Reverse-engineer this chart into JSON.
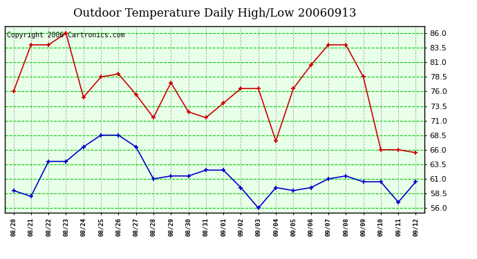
{
  "title": "Outdoor Temperature Daily High/Low 20060913",
  "copyright": "Copyright 2006 Cartronics.com",
  "labels": [
    "08/20",
    "08/21",
    "08/22",
    "08/23",
    "08/24",
    "08/25",
    "08/26",
    "08/27",
    "08/28",
    "08/29",
    "08/30",
    "08/31",
    "09/01",
    "09/02",
    "09/03",
    "09/04",
    "09/05",
    "09/06",
    "09/07",
    "09/08",
    "09/09",
    "09/10",
    "09/11",
    "09/12"
  ],
  "high": [
    76.0,
    84.0,
    84.0,
    86.0,
    75.0,
    78.5,
    79.0,
    75.5,
    71.5,
    77.5,
    72.5,
    71.5,
    74.0,
    76.5,
    76.5,
    67.5,
    76.5,
    80.5,
    84.0,
    84.0,
    78.5,
    66.0,
    66.0,
    65.5
  ],
  "low": [
    59.0,
    58.0,
    64.0,
    64.0,
    66.5,
    68.5,
    68.5,
    66.5,
    61.0,
    61.5,
    61.5,
    62.5,
    62.5,
    59.5,
    56.0,
    59.5,
    59.0,
    59.5,
    61.0,
    61.5,
    60.5,
    60.5,
    57.0,
    60.5
  ],
  "high_color": "#cc0000",
  "low_color": "#0000cc",
  "bg_color": "#ffffff",
  "plot_bg_color": "#e8ffe8",
  "grid_h_color": "#00cc00",
  "grid_v_color": "#aaaaaa",
  "ylim_min": 55.25,
  "ylim_max": 87.25,
  "yticks": [
    56.0,
    58.5,
    61.0,
    63.5,
    66.0,
    68.5,
    71.0,
    73.5,
    76.0,
    78.5,
    81.0,
    83.5,
    86.0
  ],
  "title_fontsize": 12,
  "copyright_fontsize": 7,
  "marker_size": 4,
  "linewidth": 1.2
}
